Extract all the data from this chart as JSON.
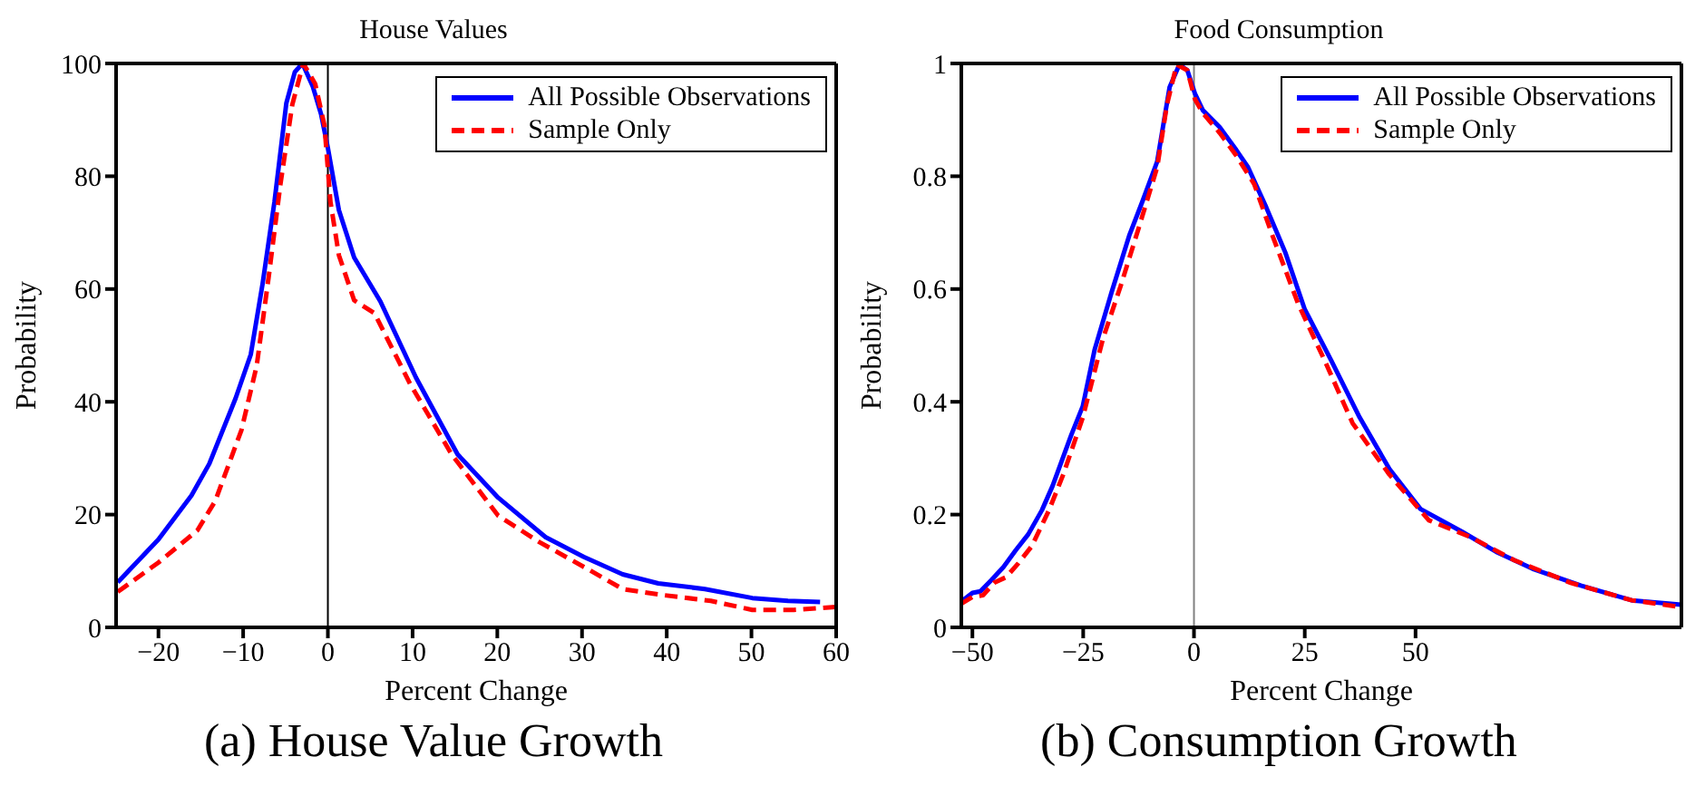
{
  "chart_data": [
    {
      "type": "line",
      "title": "House Values",
      "xlabel": "Percent Change",
      "ylabel": "Probability",
      "annotations": [
        "(a) House Value Growth"
      ],
      "xlim": [
        -25,
        60
      ],
      "xticks": [
        -20,
        -10,
        0,
        10,
        20,
        30,
        40,
        50,
        60
      ],
      "ylim": [
        0,
        100
      ],
      "yticks": [
        0,
        20,
        40,
        60,
        80,
        100
      ],
      "legend": "top right",
      "marker": "none",
      "ref_lines": [
        {
          "axis": "x",
          "value": 0,
          "color": "#000000"
        }
      ],
      "series": [
        {
          "name": "All Possible Observations",
          "color": "#0000ff",
          "line_style": "solid",
          "x": [
            -24.8,
            -20,
            -16.1,
            -14,
            -10.9,
            -9.1,
            -7.7,
            -6.3,
            -4.9,
            -3.9,
            -3,
            -1.8,
            -0.8,
            0,
            1.3,
            3.1,
            6.2,
            10.4,
            15.3,
            20.1,
            25.7,
            30.2,
            34.8,
            39,
            44.5,
            50.1,
            54.3,
            58.1
          ],
          "values": [
            8,
            15.6,
            23.4,
            29,
            40.6,
            48.4,
            61,
            75.5,
            93,
            98.5,
            100,
            96,
            91,
            85,
            74,
            65.6,
            57.8,
            44.3,
            30.7,
            23,
            16,
            12.5,
            9.4,
            7.8,
            6.8,
            5.2,
            4.7,
            4.5
          ]
        },
        {
          "name": "Sample Only",
          "color": "#ff0000",
          "line_style": "dashed",
          "x": [
            -24.8,
            -20,
            -15.4,
            -13.3,
            -10.2,
            -8.4,
            -7,
            -5.6,
            -4.2,
            -2.9,
            -1.5,
            -0.4,
            0.3,
            1.3,
            3.1,
            5.5,
            9.7,
            14.6,
            20.1,
            25,
            30.6,
            34.8,
            39.7,
            45.2,
            50.1,
            55,
            59.9
          ],
          "values": [
            6.3,
            11.5,
            17.2,
            22.4,
            35,
            46.4,
            62,
            78.6,
            92.7,
            100,
            96.4,
            89,
            75.5,
            66,
            58,
            55.7,
            43.2,
            30.7,
            19.8,
            15.1,
            10.4,
            6.8,
            5.7,
            4.7,
            3.1,
            3.1,
            3.6
          ]
        }
      ]
    },
    {
      "type": "line",
      "title": "Food Consumption",
      "xlabel": "Percent Change",
      "ylabel": "Probability",
      "annotations": [
        "(b) Consumption Growth"
      ],
      "xlim": [
        -52.5,
        110
      ],
      "xticks": [
        -50,
        -25,
        0,
        25,
        50
      ],
      "ylim": [
        0,
        1
      ],
      "yticks": [
        0,
        0.2,
        0.4,
        0.6,
        0.8,
        1
      ],
      "legend": "top right",
      "marker": "none",
      "ref_lines": [
        {
          "axis": "x",
          "value": 0,
          "color": "#808080"
        }
      ],
      "series": [
        {
          "name": "All Possible Observations",
          "color": "#0000ff",
          "line_style": "solid",
          "x": [
            -52.5,
            -50,
            -48.2,
            -45.7,
            -43,
            -40.2,
            -37.4,
            -34.3,
            -31.9,
            -27.7,
            -25.1,
            -22.4,
            -18.6,
            -14.6,
            -11.6,
            -8.3,
            -5.5,
            -3.3,
            -1.5,
            0.2,
            2,
            5.8,
            9.6,
            12.2,
            16.3,
            20.6,
            25,
            31,
            37.4,
            44.1,
            51.1,
            60.4,
            68.2,
            76.4,
            87.3,
            98.8,
            110
          ],
          "values": [
            0.046,
            0.061,
            0.064,
            0.084,
            0.107,
            0.137,
            0.165,
            0.208,
            0.251,
            0.341,
            0.392,
            0.493,
            0.594,
            0.695,
            0.756,
            0.826,
            0.958,
            0.998,
            0.988,
            0.947,
            0.917,
            0.887,
            0.846,
            0.816,
            0.745,
            0.665,
            0.564,
            0.473,
            0.372,
            0.281,
            0.21,
            0.17,
            0.134,
            0.104,
            0.074,
            0.048,
            0.04
          ]
        },
        {
          "name": "Sample Only",
          "color": "#ff0000",
          "line_style": "dashed",
          "x": [
            -52.5,
            -50,
            -47.6,
            -45.1,
            -42.4,
            -39.6,
            -36.6,
            -32.7,
            -29.5,
            -25.1,
            -20.5,
            -16.6,
            -12.6,
            -8.3,
            -6.1,
            -3.9,
            -1.5,
            0.2,
            2,
            5.8,
            9.6,
            13.6,
            17.7,
            23.5,
            29.5,
            35.8,
            44.1,
            53,
            62.4,
            72.3,
            85,
            98.8,
            110
          ],
          "values": [
            0.042,
            0.054,
            0.057,
            0.079,
            0.089,
            0.114,
            0.144,
            0.208,
            0.271,
            0.372,
            0.513,
            0.604,
            0.705,
            0.816,
            0.927,
            0.998,
            0.988,
            0.937,
            0.912,
            0.877,
            0.836,
            0.786,
            0.695,
            0.574,
            0.473,
            0.362,
            0.271,
            0.19,
            0.16,
            0.119,
            0.079,
            0.048,
            0.036
          ]
        }
      ]
    }
  ]
}
